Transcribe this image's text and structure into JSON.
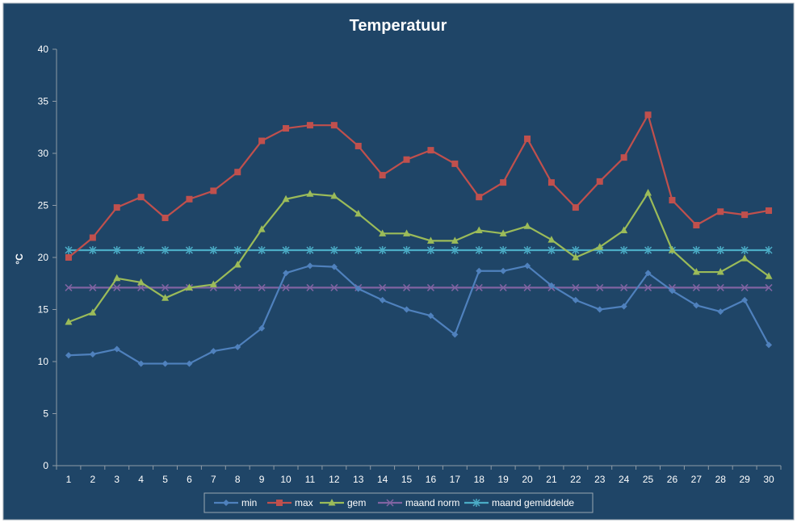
{
  "chart_data": {
    "type": "line",
    "title": "Temperatuur",
    "xlabel": "",
    "ylabel": "°C",
    "ylim": [
      0,
      40
    ],
    "yticks": [
      0,
      5,
      10,
      15,
      20,
      25,
      30,
      35,
      40
    ],
    "grid": false,
    "legend_position": "bottom",
    "background_color": "#1f4567",
    "text_color": "#ffffff",
    "categories": [
      "1",
      "2",
      "3",
      "4",
      "5",
      "6",
      "7",
      "8",
      "9",
      "10",
      "11",
      "12",
      "13",
      "14",
      "15",
      "16",
      "17",
      "18",
      "19",
      "20",
      "21",
      "22",
      "23",
      "24",
      "25",
      "26",
      "27",
      "28",
      "29",
      "30"
    ],
    "series": [
      {
        "name": "min",
        "color": "#4f81bd",
        "marker": "diamond",
        "values": [
          10.6,
          10.7,
          11.2,
          9.8,
          9.8,
          9.8,
          11.0,
          11.4,
          13.2,
          18.5,
          19.2,
          19.1,
          17.0,
          15.9,
          15.0,
          14.4,
          12.6,
          18.7,
          18.7,
          19.2,
          17.3,
          15.9,
          15.0,
          15.3,
          18.5,
          16.8,
          15.4,
          14.8,
          15.9,
          11.6
        ]
      },
      {
        "name": "max",
        "color": "#c0504d",
        "marker": "square",
        "values": [
          20.0,
          21.9,
          24.8,
          25.8,
          23.8,
          25.6,
          26.4,
          28.2,
          31.2,
          32.4,
          32.7,
          32.7,
          30.7,
          27.9,
          29.4,
          30.3,
          29.0,
          25.8,
          27.2,
          31.4,
          27.2,
          24.8,
          27.3,
          29.6,
          33.7,
          25.5,
          23.1,
          24.4,
          24.1,
          24.5
        ]
      },
      {
        "name": "gem",
        "color": "#9bbb59",
        "marker": "triangle",
        "values": [
          13.8,
          14.7,
          18.0,
          17.6,
          16.1,
          17.1,
          17.4,
          19.3,
          22.7,
          25.6,
          26.1,
          25.9,
          24.2,
          22.3,
          22.3,
          21.6,
          21.6,
          22.6,
          22.3,
          23.0,
          21.7,
          20.0,
          21.0,
          22.6,
          26.2,
          20.7,
          18.6,
          18.6,
          19.9,
          18.2
        ]
      },
      {
        "name": "maand norm",
        "color": "#8064a2",
        "marker": "x",
        "values": [
          17.1,
          17.1,
          17.1,
          17.1,
          17.1,
          17.1,
          17.1,
          17.1,
          17.1,
          17.1,
          17.1,
          17.1,
          17.1,
          17.1,
          17.1,
          17.1,
          17.1,
          17.1,
          17.1,
          17.1,
          17.1,
          17.1,
          17.1,
          17.1,
          17.1,
          17.1,
          17.1,
          17.1,
          17.1,
          17.1
        ]
      },
      {
        "name": "maand gemiddelde",
        "color": "#4bacc6",
        "marker": "star",
        "values": [
          20.7,
          20.7,
          20.7,
          20.7,
          20.7,
          20.7,
          20.7,
          20.7,
          20.7,
          20.7,
          20.7,
          20.7,
          20.7,
          20.7,
          20.7,
          20.7,
          20.7,
          20.7,
          20.7,
          20.7,
          20.7,
          20.7,
          20.7,
          20.7,
          20.7,
          20.7,
          20.7,
          20.7,
          20.7,
          20.7
        ]
      }
    ]
  }
}
